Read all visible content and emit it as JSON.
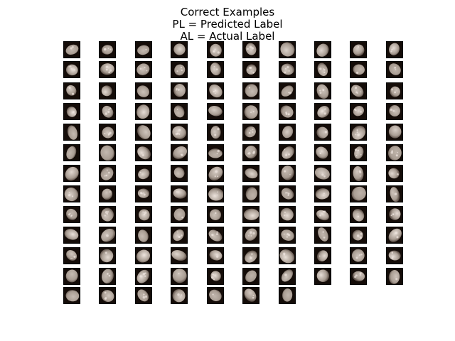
{
  "figure": {
    "title_lines": [
      "Correct Examples",
      "PL = Predicted Label",
      "AL = Actual Label"
    ]
  },
  "grid": {
    "columns": 10,
    "rows": 13,
    "total_images": 127,
    "image_description": "grayscale cell nucleus patches",
    "colors": {
      "background": "#140c08",
      "nucleus_light": "#efe6df",
      "nucleus_mid": "#a89c92",
      "nucleus_dark": "#5c4f47"
    }
  }
}
